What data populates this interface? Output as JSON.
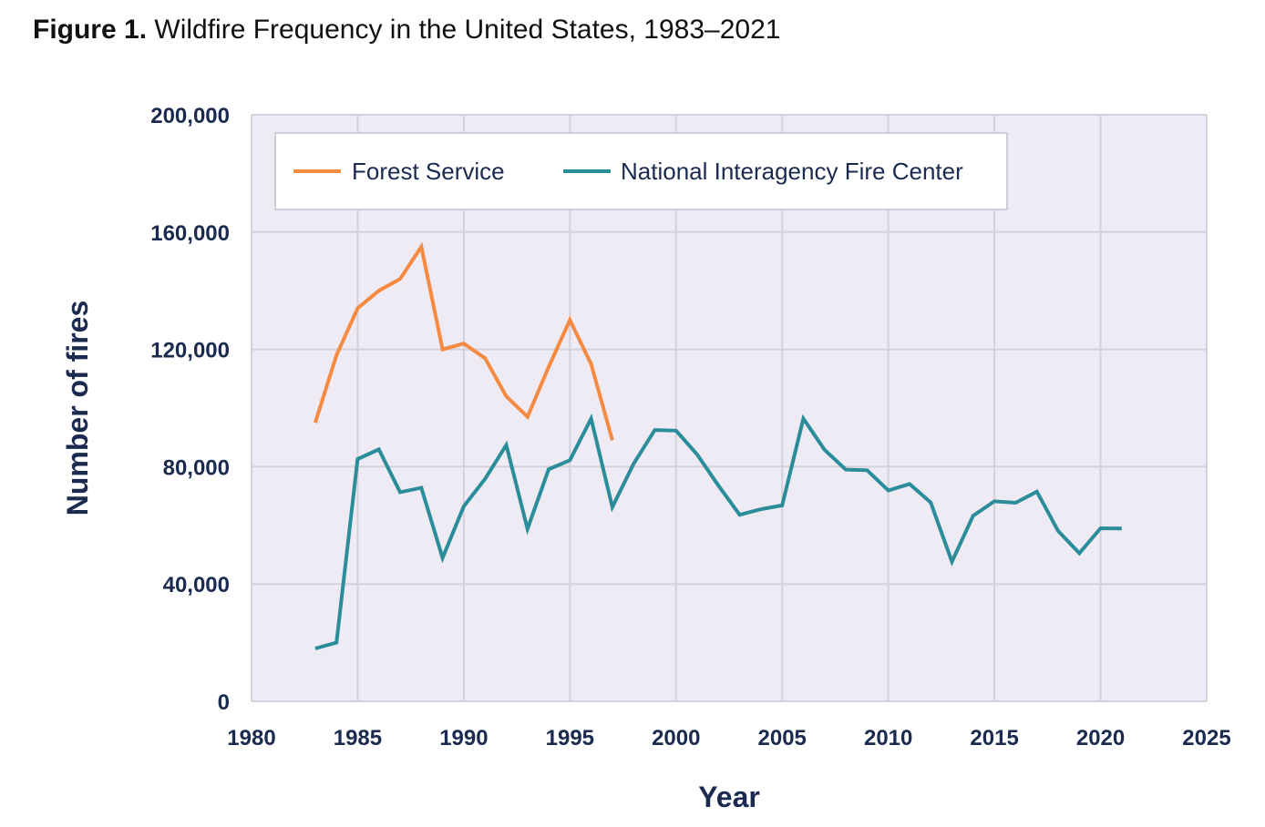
{
  "caption": {
    "lead": "Figure 1.",
    "text": "Wildfire Frequency in the United States, 1983–2021"
  },
  "chart_data": {
    "type": "line",
    "title": "Wildfire Frequency in the United States, 1983–2021",
    "xlabel": "Year",
    "ylabel": "Number of fires",
    "xlim": [
      1980,
      2025
    ],
    "ylim": [
      0,
      200000
    ],
    "grid": true,
    "legend_position": "top-left",
    "x_ticks": [
      "1980",
      "1985",
      "1990",
      "1995",
      "2000",
      "2005",
      "2010",
      "2015",
      "2020",
      "2025"
    ],
    "y_ticks": [
      "0",
      "40,000",
      "80,000",
      "120,000",
      "160,000",
      "200,000"
    ],
    "x_tick_values": [
      1980,
      1985,
      1990,
      1995,
      2000,
      2005,
      2010,
      2015,
      2020,
      2025
    ],
    "y_tick_values": [
      0,
      40000,
      80000,
      120000,
      160000,
      200000
    ],
    "series": [
      {
        "name": "Forest Service",
        "color": "#f58a42",
        "x": [
          1983,
          1984,
          1985,
          1986,
          1987,
          1988,
          1989,
          1990,
          1991,
          1992,
          1993,
          1994,
          1995,
          1996,
          1997
        ],
        "values": [
          95000,
          118000,
          134000,
          140000,
          144000,
          155000,
          120000,
          122000,
          117000,
          104000,
          97000,
          114000,
          130000,
          115000,
          89000
        ]
      },
      {
        "name": "National Interagency Fire Center",
        "color": "#2b8c9a",
        "x": [
          1983,
          1984,
          1985,
          1986,
          1987,
          1988,
          1989,
          1990,
          1991,
          1992,
          1993,
          1994,
          1995,
          1996,
          1997,
          1998,
          1999,
          2000,
          2001,
          2002,
          2003,
          2004,
          2005,
          2006,
          2007,
          2008,
          2009,
          2010,
          2011,
          2012,
          2013,
          2014,
          2015,
          2016,
          2017,
          2018,
          2019,
          2020,
          2021
        ],
        "values": [
          18000,
          20000,
          82600,
          85900,
          71300,
          72800,
          48900,
          66500,
          75800,
          87400,
          58800,
          79100,
          82200,
          96400,
          66200,
          81000,
          92500,
          92300,
          84100,
          73500,
          63600,
          65500,
          66800,
          96400,
          85700,
          79000,
          78800,
          71900,
          74100,
          67800,
          47600,
          63300,
          68200,
          67700,
          71500,
          58100,
          50500,
          59000,
          58900
        ]
      }
    ]
  }
}
